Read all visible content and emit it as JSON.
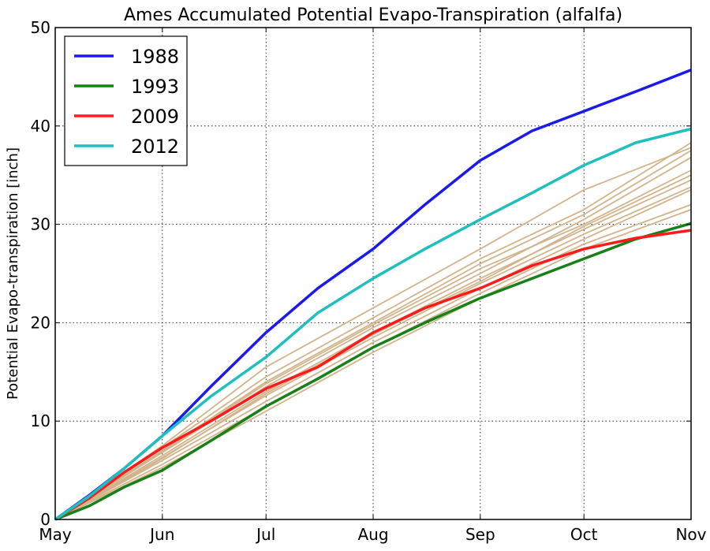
{
  "chart_data": {
    "type": "line",
    "title": "Ames Accumulated Potential Evapo-Transpiration (alfalfa)",
    "xlabel": "",
    "ylabel": "Potential Evapo-transpiration [inch]",
    "x_ticks": [
      "May",
      "Jun",
      "Jul",
      "Aug",
      "Sep",
      "Oct",
      "Nov"
    ],
    "x_tick_days": [
      0,
      31,
      61,
      92,
      123,
      153,
      184
    ],
    "x_unit": "days since May 1",
    "xlim": [
      0,
      184
    ],
    "ylim": [
      0,
      50
    ],
    "y_ticks": [
      0,
      10,
      20,
      30,
      40,
      50
    ],
    "grid": true,
    "legend_position": "top-left",
    "series": [
      {
        "name": "1988",
        "color": "#1a1aee",
        "highlight": true,
        "x": [
          0,
          10,
          20,
          31,
          45,
          61,
          76,
          92,
          107,
          123,
          138,
          153,
          168,
          184
        ],
        "y": [
          0,
          2.5,
          5.2,
          8.5,
          13.5,
          19.0,
          23.5,
          27.5,
          32.0,
          36.5,
          39.5,
          41.5,
          43.5,
          45.7
        ]
      },
      {
        "name": "1993",
        "color": "#178017",
        "highlight": true,
        "x": [
          0,
          10,
          20,
          31,
          45,
          61,
          76,
          92,
          107,
          123,
          138,
          153,
          168,
          184
        ],
        "y": [
          0,
          1.4,
          3.3,
          5.0,
          8.0,
          11.5,
          14.3,
          17.5,
          20.0,
          22.5,
          24.5,
          26.5,
          28.5,
          30.1
        ]
      },
      {
        "name": "2009",
        "color": "#ff1a1a",
        "highlight": true,
        "x": [
          0,
          10,
          20,
          31,
          45,
          61,
          76,
          92,
          107,
          123,
          138,
          153,
          168,
          184
        ],
        "y": [
          0,
          2.2,
          4.8,
          7.3,
          10.0,
          13.3,
          15.5,
          19.0,
          21.5,
          23.5,
          25.8,
          27.5,
          28.6,
          29.4
        ]
      },
      {
        "name": "2012",
        "color": "#1fbfbf",
        "highlight": true,
        "x": [
          0,
          10,
          20,
          31,
          45,
          61,
          76,
          92,
          107,
          123,
          138,
          153,
          168,
          184
        ],
        "y": [
          0,
          2.4,
          5.2,
          8.5,
          12.5,
          16.5,
          21.0,
          24.5,
          27.5,
          30.5,
          33.2,
          36.0,
          38.3,
          39.7
        ]
      },
      {
        "name": "",
        "color": "#d2b48c",
        "highlight": false,
        "x": [
          0,
          31,
          61,
          92,
          123,
          153,
          184
        ],
        "y": [
          0,
          7.3,
          14.5,
          20.5,
          26.5,
          31.5,
          38.3
        ]
      },
      {
        "name": "",
        "color": "#d2b48c",
        "highlight": false,
        "x": [
          0,
          31,
          61,
          92,
          123,
          153,
          184
        ],
        "y": [
          0,
          7.0,
          14.0,
          20.0,
          26.0,
          31.0,
          37.5
        ]
      },
      {
        "name": "",
        "color": "#d2b48c",
        "highlight": false,
        "x": [
          0,
          31,
          61,
          92,
          123,
          153,
          184
        ],
        "y": [
          0,
          6.8,
          13.5,
          19.5,
          25.0,
          30.5,
          36.8
        ]
      },
      {
        "name": "",
        "color": "#d2b48c",
        "highlight": false,
        "x": [
          0,
          31,
          61,
          92,
          123,
          153,
          184
        ],
        "y": [
          0,
          6.9,
          13.8,
          19.8,
          25.5,
          30.0,
          35.5
        ]
      },
      {
        "name": "",
        "color": "#d2b48c",
        "highlight": false,
        "x": [
          0,
          31,
          61,
          92,
          123,
          153,
          184
        ],
        "y": [
          0,
          6.5,
          13.0,
          19.0,
          24.5,
          29.5,
          34.5
        ]
      },
      {
        "name": "",
        "color": "#d2b48c",
        "highlight": false,
        "x": [
          0,
          31,
          61,
          92,
          123,
          153,
          184
        ],
        "y": [
          0,
          6.3,
          12.6,
          18.5,
          24.0,
          29.0,
          33.8
        ]
      },
      {
        "name": "",
        "color": "#d2b48c",
        "highlight": false,
        "x": [
          0,
          31,
          61,
          92,
          123,
          153,
          184
        ],
        "y": [
          0,
          6.0,
          12.0,
          18.0,
          23.5,
          28.5,
          33.5
        ]
      },
      {
        "name": "",
        "color": "#d2b48c",
        "highlight": false,
        "x": [
          0,
          31,
          61,
          92,
          123,
          153,
          184
        ],
        "y": [
          0,
          5.6,
          11.5,
          17.5,
          23.0,
          28.0,
          32.0
        ]
      },
      {
        "name": "",
        "color": "#d2b48c",
        "highlight": false,
        "x": [
          0,
          31,
          61,
          92,
          123,
          153,
          184
        ],
        "y": [
          0,
          5.3,
          11.0,
          17.0,
          22.5,
          27.5,
          31.5
        ]
      },
      {
        "name": "",
        "color": "#d2b48c",
        "highlight": false,
        "x": [
          0,
          31,
          61,
          92,
          123,
          153,
          184
        ],
        "y": [
          0,
          7.5,
          15.5,
          21.5,
          27.5,
          33.5,
          37.8
        ]
      },
      {
        "name": "",
        "color": "#d2b48c",
        "highlight": false,
        "x": [
          0,
          31,
          61,
          92,
          123,
          153,
          184
        ],
        "y": [
          0,
          6.2,
          12.8,
          18.8,
          24.2,
          29.8,
          35.0
        ]
      }
    ]
  }
}
